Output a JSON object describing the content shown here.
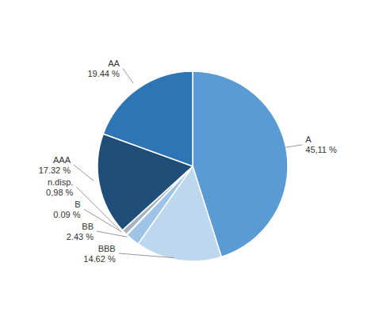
{
  "chart_data": {
    "type": "pie",
    "categories": [
      "A",
      "BBB",
      "BB",
      "B",
      "n.disp.",
      "AAA",
      "AA"
    ],
    "values": [
      45.11,
      14.62,
      2.43,
      0.09,
      0.98,
      17.32,
      19.44
    ],
    "value_labels": [
      "45,11 %",
      "14.62 %",
      "2.43 %",
      "0.09 %",
      "0,98 %",
      "17.32 %",
      "19.44 %"
    ],
    "colors": [
      "#5B9BD5",
      "#BDD7EE",
      "#9DC3E6",
      "#C0C8D0",
      "#A9B4BF",
      "#1F4E79",
      "#2E75B6"
    ],
    "data_labels": true
  }
}
